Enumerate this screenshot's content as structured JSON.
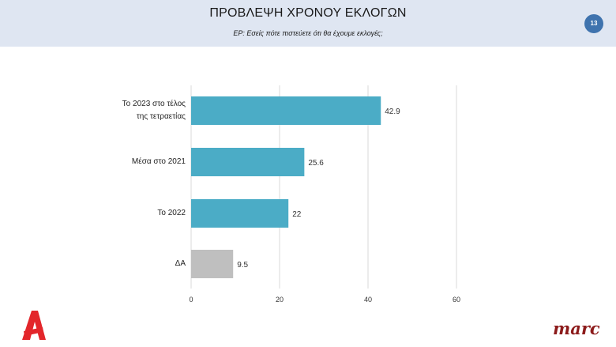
{
  "header": {
    "title": "ΠΡΟΒΛΕΨΗ ΧΡΟΝΟΥ ΕΚΛΟΓΩΝ",
    "subtitle": "ΕΡ:  Εσείς πότε πιστεύετε ότι θα έχουμε εκλογές;",
    "page_number": "13"
  },
  "brand": {
    "logo_text": "Α",
    "marc": "marc"
  },
  "colors": {
    "bar": "#4bacc6",
    "bar_na": "#bfbfbf",
    "header_bg": "#dfe6f2",
    "badge": "#3f73ae",
    "logo": "#e3262b"
  },
  "chart_data": {
    "type": "bar",
    "orientation": "horizontal",
    "categories": [
      [
        "Το 2023 στο τέλος",
        "της  τετραετίας"
      ],
      [
        "Μέσα στο 2021"
      ],
      [
        "Το 2022"
      ],
      [
        "ΔΑ"
      ]
    ],
    "values": [
      42.9,
      25.6,
      22,
      9.5
    ],
    "value_labels": [
      "42.9",
      "25.6",
      "22",
      "9.5"
    ],
    "xlim": [
      0,
      60
    ],
    "xticks": [
      "0",
      "20",
      "40",
      "60"
    ],
    "grid": true,
    "legend": "none"
  }
}
